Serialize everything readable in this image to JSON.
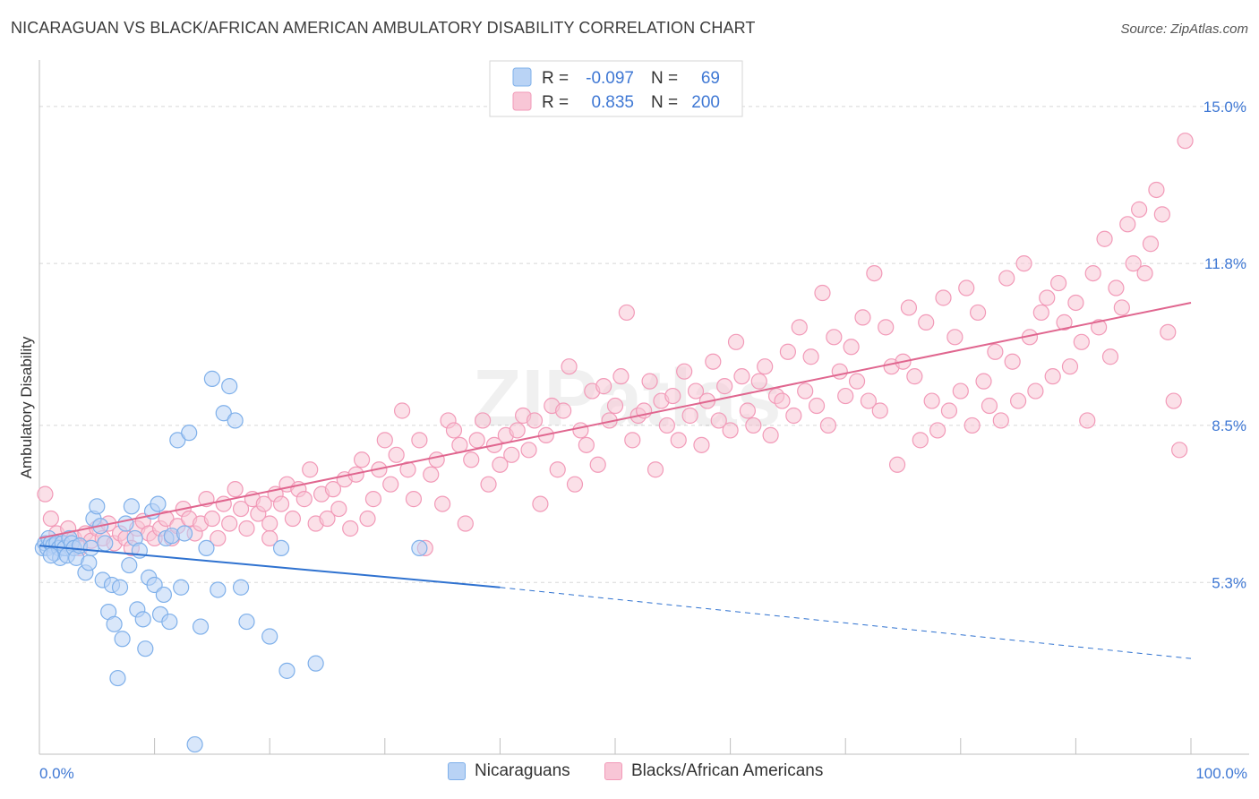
{
  "title": "NICARAGUAN VS BLACK/AFRICAN AMERICAN AMBULATORY DISABILITY CORRELATION CHART",
  "source": "Source: ZipAtlas.com",
  "watermark": "ZIPatlas",
  "chart_data": {
    "type": "scatter",
    "ylabel": "Ambulatory Disability",
    "xlim": [
      0,
      100
    ],
    "ylim": [
      1.8,
      15.8
    ],
    "x_tick_labels": [
      "0.0%",
      "100.0%"
    ],
    "y_ticks": [
      5.3,
      8.5,
      11.8,
      15.0
    ],
    "y_tick_labels": [
      "5.3%",
      "8.5%",
      "11.8%",
      "15.0%"
    ],
    "grid": true,
    "legend_top": [
      {
        "r_label": "R =",
        "r": "-0.097",
        "n_label": "N =",
        "n": "69",
        "color": "#7fb0ea"
      },
      {
        "r_label": "R =",
        "r": "0.835",
        "n_label": "N =",
        "n": "200",
        "color": "#f29ab8"
      }
    ],
    "series": [
      {
        "name": "Nicaraguans",
        "color": "#7fb0ea",
        "fill": "#b9d3f5",
        "line_color": "#2f72d0",
        "trend": {
          "x0": 0,
          "y0": 6.05,
          "x1": 40,
          "y1": 5.2,
          "dash_to_x": 100,
          "dash_to_y": 3.75
        },
        "points": [
          [
            0.3,
            6.0
          ],
          [
            0.5,
            6.1
          ],
          [
            0.7,
            6.0
          ],
          [
            0.8,
            6.2
          ],
          [
            1.0,
            6.1
          ],
          [
            1.2,
            6.05
          ],
          [
            1.3,
            5.9
          ],
          [
            1.5,
            6.1
          ],
          [
            1.7,
            6.0
          ],
          [
            1.8,
            5.8
          ],
          [
            2.0,
            6.1
          ],
          [
            2.2,
            6.0
          ],
          [
            2.4,
            5.85
          ],
          [
            2.6,
            6.2
          ],
          [
            2.8,
            6.1
          ],
          [
            3.0,
            6.0
          ],
          [
            3.2,
            5.8
          ],
          [
            3.5,
            6.05
          ],
          [
            4.0,
            5.5
          ],
          [
            4.3,
            5.7
          ],
          [
            4.5,
            6.0
          ],
          [
            4.7,
            6.6
          ],
          [
            5.0,
            6.85
          ],
          [
            5.3,
            6.45
          ],
          [
            5.5,
            5.35
          ],
          [
            5.7,
            6.1
          ],
          [
            6.0,
            4.7
          ],
          [
            6.3,
            5.25
          ],
          [
            6.5,
            4.45
          ],
          [
            6.8,
            3.35
          ],
          [
            7.0,
            5.2
          ],
          [
            7.2,
            4.15
          ],
          [
            7.5,
            6.5
          ],
          [
            7.8,
            5.65
          ],
          [
            8.0,
            6.85
          ],
          [
            8.3,
            6.2
          ],
          [
            8.5,
            4.75
          ],
          [
            8.7,
            5.95
          ],
          [
            9.0,
            4.55
          ],
          [
            9.2,
            3.95
          ],
          [
            9.5,
            5.4
          ],
          [
            9.8,
            6.75
          ],
          [
            10.0,
            5.25
          ],
          [
            10.3,
            6.9
          ],
          [
            10.5,
            4.65
          ],
          [
            10.8,
            5.05
          ],
          [
            11.0,
            6.2
          ],
          [
            11.3,
            4.5
          ],
          [
            11.5,
            6.25
          ],
          [
            12.0,
            8.2
          ],
          [
            12.3,
            5.2
          ],
          [
            12.6,
            6.3
          ],
          [
            13.0,
            8.35
          ],
          [
            13.5,
            2.0
          ],
          [
            14.0,
            4.4
          ],
          [
            14.5,
            6.0
          ],
          [
            15.0,
            9.45
          ],
          [
            15.5,
            5.15
          ],
          [
            16.0,
            8.75
          ],
          [
            16.5,
            9.3
          ],
          [
            17.0,
            8.6
          ],
          [
            17.5,
            5.2
          ],
          [
            18.0,
            4.5
          ],
          [
            20.0,
            4.2
          ],
          [
            21.0,
            6.0
          ],
          [
            21.5,
            3.5
          ],
          [
            24.0,
            3.65
          ],
          [
            33.0,
            6.0
          ],
          [
            1.0,
            5.85
          ]
        ]
      },
      {
        "name": "Blacks/African Americans",
        "color": "#f29ab8",
        "fill": "#f8c6d6",
        "line_color": "#e0668f",
        "trend": {
          "x0": 0,
          "y0": 6.2,
          "x1": 100,
          "y1": 11.0
        },
        "points": [
          [
            0.5,
            7.1
          ],
          [
            1.0,
            6.6
          ],
          [
            1.5,
            6.3
          ],
          [
            2.0,
            6.1
          ],
          [
            2.5,
            6.4
          ],
          [
            3.0,
            6.2
          ],
          [
            3.5,
            6.0
          ],
          [
            4.0,
            6.3
          ],
          [
            4.5,
            6.15
          ],
          [
            5.0,
            6.4
          ],
          [
            5.5,
            6.2
          ],
          [
            6.0,
            6.5
          ],
          [
            6.5,
            6.1
          ],
          [
            7.0,
            6.3
          ],
          [
            7.5,
            6.2
          ],
          [
            8.0,
            6.0
          ],
          [
            8.5,
            6.4
          ],
          [
            9.0,
            6.55
          ],
          [
            9.5,
            6.3
          ],
          [
            10.0,
            6.2
          ],
          [
            10.5,
            6.4
          ],
          [
            11.0,
            6.6
          ],
          [
            11.5,
            6.2
          ],
          [
            12.0,
            6.45
          ],
          [
            12.5,
            6.8
          ],
          [
            13.0,
            6.6
          ],
          [
            13.5,
            6.3
          ],
          [
            14.0,
            6.5
          ],
          [
            14.5,
            7.0
          ],
          [
            15.0,
            6.6
          ],
          [
            15.5,
            6.2
          ],
          [
            16.0,
            6.9
          ],
          [
            16.5,
            6.5
          ],
          [
            17.0,
            7.2
          ],
          [
            17.5,
            6.8
          ],
          [
            18.0,
            6.4
          ],
          [
            18.5,
            7.0
          ],
          [
            19.0,
            6.7
          ],
          [
            19.5,
            6.9
          ],
          [
            20.0,
            6.5
          ],
          [
            20.5,
            7.1
          ],
          [
            21.0,
            6.9
          ],
          [
            21.5,
            7.3
          ],
          [
            22.0,
            6.6
          ],
          [
            22.5,
            7.2
          ],
          [
            23.0,
            7.0
          ],
          [
            23.5,
            7.6
          ],
          [
            24.0,
            6.5
          ],
          [
            24.5,
            7.1
          ],
          [
            25.0,
            6.6
          ],
          [
            25.5,
            7.2
          ],
          [
            26.0,
            6.8
          ],
          [
            26.5,
            7.4
          ],
          [
            27.0,
            6.4
          ],
          [
            27.5,
            7.5
          ],
          [
            28.0,
            7.8
          ],
          [
            28.5,
            6.6
          ],
          [
            29.0,
            7.0
          ],
          [
            29.5,
            7.6
          ],
          [
            30.0,
            8.2
          ],
          [
            30.5,
            7.3
          ],
          [
            31.0,
            7.9
          ],
          [
            31.5,
            8.8
          ],
          [
            32.0,
            7.6
          ],
          [
            32.5,
            7.0
          ],
          [
            33.0,
            8.2
          ],
          [
            33.5,
            6.0
          ],
          [
            34.0,
            7.5
          ],
          [
            34.5,
            7.8
          ],
          [
            35.0,
            6.9
          ],
          [
            35.5,
            8.6
          ],
          [
            36.0,
            8.4
          ],
          [
            36.5,
            8.1
          ],
          [
            37.0,
            6.5
          ],
          [
            37.5,
            7.8
          ],
          [
            38.0,
            8.2
          ],
          [
            38.5,
            8.6
          ],
          [
            39.0,
            7.3
          ],
          [
            39.5,
            8.1
          ],
          [
            40.0,
            7.7
          ],
          [
            40.5,
            8.3
          ],
          [
            41.0,
            7.9
          ],
          [
            41.5,
            8.4
          ],
          [
            42.0,
            8.7
          ],
          [
            42.5,
            8.0
          ],
          [
            43.0,
            8.6
          ],
          [
            43.5,
            6.9
          ],
          [
            44.0,
            8.3
          ],
          [
            44.5,
            8.9
          ],
          [
            45.0,
            7.6
          ],
          [
            45.5,
            8.8
          ],
          [
            46.0,
            9.7
          ],
          [
            46.5,
            7.3
          ],
          [
            47.0,
            8.4
          ],
          [
            47.5,
            8.1
          ],
          [
            48.0,
            9.2
          ],
          [
            48.5,
            7.7
          ],
          [
            49.0,
            9.3
          ],
          [
            49.5,
            8.6
          ],
          [
            50.0,
            8.9
          ],
          [
            50.5,
            9.5
          ],
          [
            51.0,
            10.8
          ],
          [
            51.5,
            8.2
          ],
          [
            52.0,
            8.7
          ],
          [
            52.5,
            8.8
          ],
          [
            53.0,
            9.4
          ],
          [
            53.5,
            7.6
          ],
          [
            54.0,
            9.0
          ],
          [
            54.5,
            8.5
          ],
          [
            55.0,
            9.1
          ],
          [
            55.5,
            8.2
          ],
          [
            56.0,
            9.6
          ],
          [
            56.5,
            8.7
          ],
          [
            57.0,
            9.2
          ],
          [
            57.5,
            8.1
          ],
          [
            58.0,
            9.0
          ],
          [
            58.5,
            9.8
          ],
          [
            59.0,
            8.6
          ],
          [
            59.5,
            9.3
          ],
          [
            60.0,
            8.4
          ],
          [
            60.5,
            10.2
          ],
          [
            61.0,
            9.5
          ],
          [
            61.5,
            8.8
          ],
          [
            62.0,
            8.5
          ],
          [
            62.5,
            9.4
          ],
          [
            63.0,
            9.7
          ],
          [
            63.5,
            8.3
          ],
          [
            64.0,
            9.1
          ],
          [
            64.5,
            9.0
          ],
          [
            65.0,
            10.0
          ],
          [
            65.5,
            8.7
          ],
          [
            66.0,
            10.5
          ],
          [
            66.5,
            9.2
          ],
          [
            67.0,
            9.9
          ],
          [
            67.5,
            8.9
          ],
          [
            68.0,
            11.2
          ],
          [
            68.5,
            8.5
          ],
          [
            69.0,
            10.3
          ],
          [
            69.5,
            9.6
          ],
          [
            70.0,
            9.1
          ],
          [
            70.5,
            10.1
          ],
          [
            71.0,
            9.4
          ],
          [
            71.5,
            10.7
          ],
          [
            72.0,
            9.0
          ],
          [
            72.5,
            11.6
          ],
          [
            73.0,
            8.8
          ],
          [
            73.5,
            10.5
          ],
          [
            74.0,
            9.7
          ],
          [
            74.5,
            7.7
          ],
          [
            75.0,
            9.8
          ],
          [
            75.5,
            10.9
          ],
          [
            76.0,
            9.5
          ],
          [
            76.5,
            8.2
          ],
          [
            77.0,
            10.6
          ],
          [
            77.5,
            9.0
          ],
          [
            78.0,
            8.4
          ],
          [
            78.5,
            11.1
          ],
          [
            79.0,
            8.8
          ],
          [
            79.5,
            10.3
          ],
          [
            80.0,
            9.2
          ],
          [
            80.5,
            11.3
          ],
          [
            81.0,
            8.5
          ],
          [
            81.5,
            10.8
          ],
          [
            82.0,
            9.4
          ],
          [
            82.5,
            8.9
          ],
          [
            83.0,
            10.0
          ],
          [
            83.5,
            8.6
          ],
          [
            84.0,
            11.5
          ],
          [
            84.5,
            9.8
          ],
          [
            85.0,
            9.0
          ],
          [
            85.5,
            11.8
          ],
          [
            86.0,
            10.3
          ],
          [
            86.5,
            9.2
          ],
          [
            87.0,
            10.8
          ],
          [
            87.5,
            11.1
          ],
          [
            88.0,
            9.5
          ],
          [
            88.5,
            11.4
          ],
          [
            89.0,
            10.6
          ],
          [
            89.5,
            9.7
          ],
          [
            90.0,
            11.0
          ],
          [
            90.5,
            10.2
          ],
          [
            91.0,
            8.6
          ],
          [
            91.5,
            11.6
          ],
          [
            92.0,
            10.5
          ],
          [
            92.5,
            12.3
          ],
          [
            93.0,
            9.9
          ],
          [
            93.5,
            11.3
          ],
          [
            94.0,
            10.9
          ],
          [
            94.5,
            12.6
          ],
          [
            95.0,
            11.8
          ],
          [
            95.5,
            12.9
          ],
          [
            96.0,
            11.6
          ],
          [
            96.5,
            12.2
          ],
          [
            97.0,
            13.3
          ],
          [
            97.5,
            12.8
          ],
          [
            98.0,
            10.4
          ],
          [
            98.5,
            9.0
          ],
          [
            99.0,
            8.0
          ],
          [
            99.5,
            14.3
          ],
          [
            20.0,
            6.2
          ]
        ]
      }
    ]
  }
}
